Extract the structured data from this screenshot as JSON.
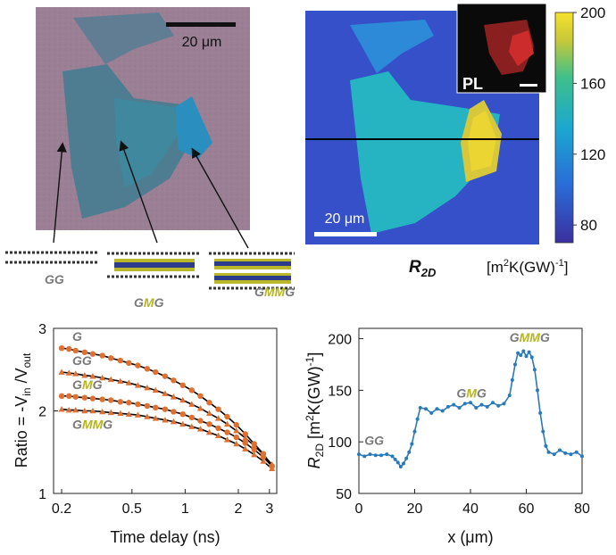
{
  "optical": {
    "scale_label": "20 μm",
    "stack_labels": {
      "gg": "GG",
      "gmg_g1": "G",
      "gmg_m": "M",
      "gmg_g2": "G",
      "gmmg_g1": "G",
      "gmmg_mm": "MM",
      "gmmg_g2": "G"
    }
  },
  "map": {
    "scale_label": "20 μm",
    "inset_label": "PL",
    "title_main": "R",
    "title_sub": "2D",
    "colorbar": {
      "ticks": [
        200,
        160,
        120,
        80
      ],
      "min": 70,
      "max": 200,
      "unit_a": "[m",
      "unit_sup1": "2",
      "unit_b": "K(GW)",
      "unit_sup2": "-1",
      "unit_c": "]"
    },
    "colors": {
      "low": "#3b2f9e",
      "mid": "#26b8a8",
      "high": "#f2e62a"
    }
  },
  "chart_data": [
    {
      "type": "scatter",
      "xlabel": "Time delay (ns)",
      "ylabel_a": "Ratio = -V",
      "ylabel_sub1": "in",
      "ylabel_b": " /V",
      "ylabel_sub2": "out",
      "x_scale": "log",
      "xlim": [
        0.18,
        3.3
      ],
      "ylim": [
        1,
        3
      ],
      "x_ticks": [
        0.2,
        0.5,
        1,
        2,
        3
      ],
      "x_tick_labels": [
        "0.2",
        "0.5",
        "1",
        "2",
        "3"
      ],
      "y_ticks": [
        1,
        2,
        3
      ],
      "y_tick_labels": [
        "1",
        "2",
        "3"
      ],
      "marker_color": "#e07030",
      "fit_color": "#000000",
      "x": [
        0.2,
        0.22,
        0.24,
        0.27,
        0.3,
        0.34,
        0.38,
        0.43,
        0.48,
        0.54,
        0.61,
        0.68,
        0.77,
        0.86,
        0.97,
        1.09,
        1.22,
        1.37,
        1.54,
        1.73,
        1.95,
        2.19,
        2.46,
        2.77,
        3.1
      ],
      "series": [
        {
          "label_parts": [
            {
              "t": "G",
              "c": "gray"
            }
          ],
          "values": [
            2.76,
            2.75,
            2.73,
            2.71,
            2.69,
            2.67,
            2.64,
            2.61,
            2.58,
            2.55,
            2.51,
            2.47,
            2.42,
            2.37,
            2.31,
            2.25,
            2.18,
            2.1,
            2.02,
            1.93,
            1.83,
            1.72,
            1.6,
            1.48,
            1.33
          ]
        },
        {
          "label_parts": [
            {
              "t": "GG",
              "c": "gray"
            }
          ],
          "values": [
            2.47,
            2.46,
            2.45,
            2.43,
            2.42,
            2.4,
            2.38,
            2.36,
            2.34,
            2.31,
            2.28,
            2.25,
            2.21,
            2.17,
            2.13,
            2.08,
            2.03,
            1.97,
            1.91,
            1.84,
            1.76,
            1.67,
            1.58,
            1.47,
            1.35
          ]
        },
        {
          "label_parts": [
            {
              "t": "G",
              "c": "gray"
            },
            {
              "t": "M",
              "c": "olive"
            },
            {
              "t": "G",
              "c": "gray"
            }
          ],
          "values": [
            2.18,
            2.18,
            2.17,
            2.16,
            2.15,
            2.14,
            2.13,
            2.11,
            2.1,
            2.08,
            2.06,
            2.04,
            2.02,
            1.99,
            1.96,
            1.92,
            1.88,
            1.84,
            1.79,
            1.74,
            1.68,
            1.61,
            1.53,
            1.44,
            1.33
          ]
        },
        {
          "label_parts": [
            {
              "t": "G",
              "c": "gray"
            },
            {
              "t": "MM",
              "c": "olive"
            },
            {
              "t": "G",
              "c": "gray"
            }
          ],
          "values": [
            2.02,
            2.01,
            2.01,
            2.0,
            2.0,
            1.99,
            1.98,
            1.97,
            1.96,
            1.95,
            1.93,
            1.91,
            1.89,
            1.87,
            1.84,
            1.81,
            1.78,
            1.74,
            1.7,
            1.65,
            1.6,
            1.54,
            1.47,
            1.39,
            1.3
          ]
        }
      ]
    },
    {
      "type": "line",
      "xlabel": "x (μm)",
      "ylabel_a": "R",
      "ylabel_sub1": "2D",
      "ylabel_b": " [m",
      "ylabel_sup1": "2",
      "ylabel_c": "K(GW)",
      "ylabel_sup2": "-1",
      "ylabel_d": "]",
      "xlim": [
        0,
        80
      ],
      "ylim": [
        50,
        210
      ],
      "x_ticks": [
        0,
        20,
        40,
        60,
        80
      ],
      "x_tick_labels": [
        "0",
        "20",
        "40",
        "60",
        "80"
      ],
      "y_ticks": [
        50,
        100,
        150,
        200
      ],
      "y_tick_labels": [
        "50",
        "100",
        "150",
        "200"
      ],
      "color": "#2a7ab8",
      "annotations": [
        {
          "x": 2,
          "y": 97,
          "parts": [
            {
              "t": "GG",
              "c": "gray"
            }
          ]
        },
        {
          "x": 35,
          "y": 143,
          "parts": [
            {
              "t": "G",
              "c": "gray"
            },
            {
              "t": "M",
              "c": "olive"
            },
            {
              "t": "G",
              "c": "gray"
            }
          ]
        },
        {
          "x": 54,
          "y": 197,
          "parts": [
            {
              "t": "G",
              "c": "gray"
            },
            {
              "t": "MM",
              "c": "olive"
            },
            {
              "t": "G",
              "c": "gray"
            }
          ]
        }
      ],
      "x": [
        0,
        2,
        4,
        6,
        8,
        10,
        12,
        13,
        14,
        15,
        16,
        17,
        18,
        19,
        20,
        21,
        22,
        24,
        26,
        28,
        30,
        32,
        34,
        36,
        38,
        40,
        42,
        44,
        46,
        48,
        50,
        52,
        54,
        55,
        56,
        57,
        58,
        59,
        60,
        61,
        62,
        63,
        64,
        65,
        66,
        67,
        68,
        70,
        72,
        74,
        76,
        78,
        80
      ],
      "values": [
        88,
        86,
        88,
        87,
        87,
        88,
        86,
        83,
        80,
        76,
        79,
        84,
        90,
        98,
        110,
        122,
        133,
        132,
        128,
        132,
        130,
        134,
        136,
        133,
        137,
        138,
        133,
        136,
        134,
        138,
        135,
        137,
        145,
        160,
        175,
        186,
        184,
        188,
        183,
        187,
        182,
        170,
        150,
        128,
        110,
        96,
        90,
        88,
        92,
        89,
        88,
        90,
        86
      ]
    }
  ]
}
